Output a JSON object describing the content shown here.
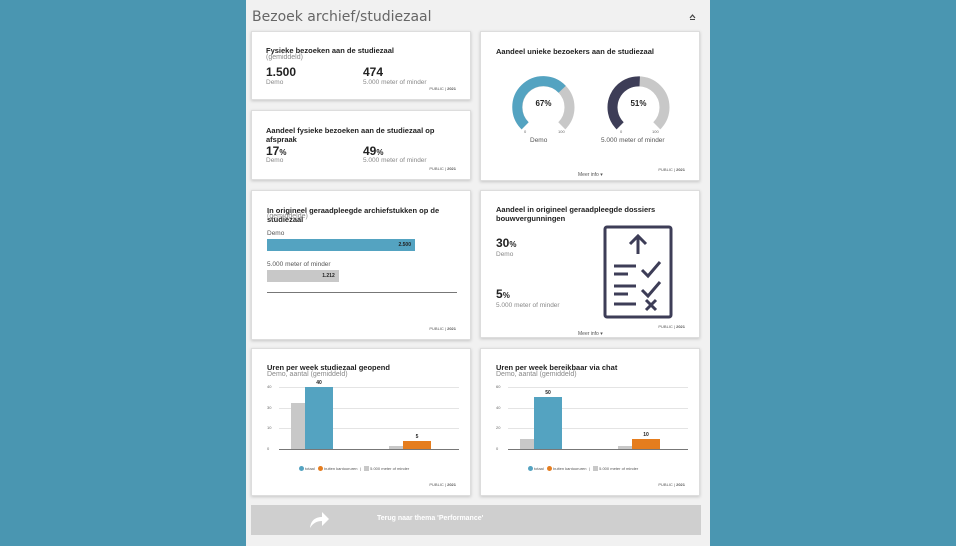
{
  "header": {
    "title": "Bezoek archief/studiezaal",
    "collapse_icon": "chevron-up-icon"
  },
  "source_label": "PUBLIC",
  "source_year": "2021",
  "more_info": "Meer info ▾",
  "colors": {
    "teal": "#54a3c1",
    "gray": "#c8c8c8",
    "orange": "#e57d1e",
    "navy": "#3d3d57",
    "background": "#4a96b1"
  },
  "card1": {
    "title": "Fysieke bezoeken aan de studiezaal",
    "subtitle": "(gemiddeld)",
    "value_a": "1.500",
    "label_a": "Demo",
    "value_b": "474",
    "label_b": "5.000 meter of minder"
  },
  "card2": {
    "title": "Aandeel fysieke bezoeken aan de studiezaal op afspraak",
    "value_a": "17",
    "unit": "%",
    "label_a": "Demo",
    "value_b": "49",
    "label_b": "5.000 meter of minder"
  },
  "card3": {
    "title": "Aandeel unieke bezoekers aan de studiezaal",
    "gauge_a": {
      "value": 67,
      "label": "67%",
      "min": "0",
      "max": "100",
      "name": "Demo"
    },
    "gauge_b": {
      "value": 51,
      "label": "51%",
      "min": "0",
      "max": "100",
      "name": "5.000 meter of minder"
    }
  },
  "card4": {
    "title": "In origineel geraadpleegde archiefstukken op de studiezaal",
    "subtitle": "(gemiddelde)",
    "bar_a": {
      "label": "Demo",
      "value": 2500,
      "value_label": "2.500"
    },
    "bar_b": {
      "label": "5.000 meter of minder",
      "value": 1212,
      "value_label": "1.212"
    }
  },
  "card5": {
    "title": "Aandeel in origineel geraadpleegde dossiers bouwvergunningen",
    "value_a": "30",
    "unit": "%",
    "label_a": "Demo",
    "value_b": "5",
    "label_b": "5.000 meter of minder",
    "icon": "checklist-icon"
  },
  "legend": {
    "totaal": "totaal",
    "buiten": "buiten kantooruren",
    "peer": "5.000 meter of minder"
  },
  "card6": {
    "title": "Uren per week studiezaal geopend",
    "subtitle": "Demo, aantal (gemiddeld)",
    "ticks": [
      "40",
      "30",
      "10",
      "0"
    ]
  },
  "card7": {
    "title": "Uren per week bereikbaar via chat",
    "subtitle": "Demo, aantal (gemiddeld)",
    "ticks": [
      "60",
      "40",
      "20",
      "0"
    ]
  },
  "chart_data": [
    {
      "type": "bar",
      "title": "Uren per week studiezaal geopend",
      "categories": [
        "totaal",
        "buiten kantooruren"
      ],
      "ylim": [
        0,
        40
      ],
      "series": [
        {
          "name": "Demo",
          "values": [
            40,
            5
          ]
        },
        {
          "name": "5.000 meter of minder",
          "values": [
            30,
            2
          ]
        }
      ],
      "data_labels": [
        "40",
        "5"
      ]
    },
    {
      "type": "bar",
      "title": "Uren per week bereikbaar via chat",
      "categories": [
        "totaal",
        "buiten kantooruren"
      ],
      "ylim": [
        0,
        60
      ],
      "series": [
        {
          "name": "Demo",
          "values": [
            50,
            10
          ]
        },
        {
          "name": "5.000 meter of minder",
          "values": [
            10,
            3
          ]
        }
      ],
      "data_labels": [
        "50",
        "10"
      ]
    }
  ],
  "footer": {
    "back_label": "Terug naar thema 'Performance'",
    "back_icon": "share-arrow-icon"
  }
}
